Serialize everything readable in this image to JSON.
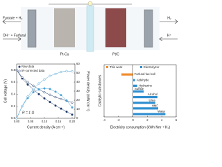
{
  "diagram": {
    "left_in_top": "Furoate + H₂",
    "left_in_bottom": "OH⁻ + Furfural",
    "anode_label": "Pt-Cu",
    "cathode_label": "Pt/C",
    "right_out_top": "H₂",
    "right_out_bottom": "H⁺"
  },
  "chart_data": [
    {
      "type": "line",
      "xlabel": "Current density (A cm⁻²)",
      "ylabel": "Cell voltage (V)",
      "y2label": "Power density (mW cm⁻²)",
      "annotation": "R = 1 Ω",
      "x": [
        0,
        0.02,
        0.04,
        0.06,
        0.08,
        0.1,
        0.12,
        0.14,
        0.16,
        0.18,
        0.2
      ],
      "xlim": [
        0,
        0.21
      ],
      "xticks": [
        {
          "value": 0,
          "label": "0.00"
        },
        {
          "value": 0.05,
          "label": "0.05"
        },
        {
          "value": 0.1,
          "label": "0.10"
        },
        {
          "value": 0.15,
          "label": "0.15"
        },
        {
          "value": 0.2,
          "label": "0.20"
        }
      ],
      "ylim": [
        0,
        0.9
      ],
      "yticks": [
        {
          "value": 0,
          "label": "0.0"
        },
        0.2,
        0.4,
        0.6,
        0.8
      ],
      "y2lim": [
        0,
        60
      ],
      "y2ticks": [
        0,
        10,
        20,
        30,
        40,
        50,
        60
      ],
      "series": [
        {
          "name": "Raw data",
          "color": "#1f3a68",
          "filled": true,
          "values": [
            0.8,
            0.66,
            0.56,
            0.48,
            0.4,
            0.33,
            0.27,
            0.21,
            0.16,
            0.11,
            0.06
          ]
        },
        {
          "name": "IR-corrected data",
          "color": "#1f3a68",
          "filled": false,
          "values": [
            0.8,
            0.68,
            0.6,
            0.54,
            0.48,
            0.43,
            0.39,
            0.35,
            0.32,
            0.29,
            0.26
          ]
        },
        {
          "color": "#4aa3d8",
          "filled": true,
          "axis": "y2",
          "values": [
            0,
            13.2,
            22.4,
            28.8,
            32,
            33,
            32.4,
            29.4,
            25.6,
            19.8,
            12
          ]
        },
        {
          "color": "#4aa3d8",
          "filled": false,
          "axis": "y2",
          "values": [
            0,
            13.6,
            24,
            32.4,
            38.4,
            43,
            46.8,
            49,
            51.2,
            52.2,
            52
          ]
        }
      ]
    },
    {
      "type": "hbar",
      "xlabel": "Electricity consumption (kWh Nm⁻³ H₂)",
      "ylabel": "Catalytic substances",
      "categories": [
        "Furfural fuel cell",
        "Aldehyde",
        "Hydrazine",
        "Sulfide",
        "Alcohol",
        "Urea",
        "HMF",
        "Water"
      ],
      "xlim": [
        -4,
        6
      ],
      "xticks": [
        -4,
        -2,
        0,
        2,
        4,
        6
      ],
      "series": [
        {
          "name": "This work",
          "color": "#f08c2e",
          "values": [
            -1.6,
            null,
            null,
            null,
            null,
            null,
            null,
            null
          ]
        },
        {
          "name": "Electrolyzer",
          "color": "#2f8fd0",
          "values": [
            null,
            0.3,
            0.6,
            1.5,
            3.4,
            3.1,
            3.5,
            4.5
          ]
        }
      ]
    }
  ]
}
